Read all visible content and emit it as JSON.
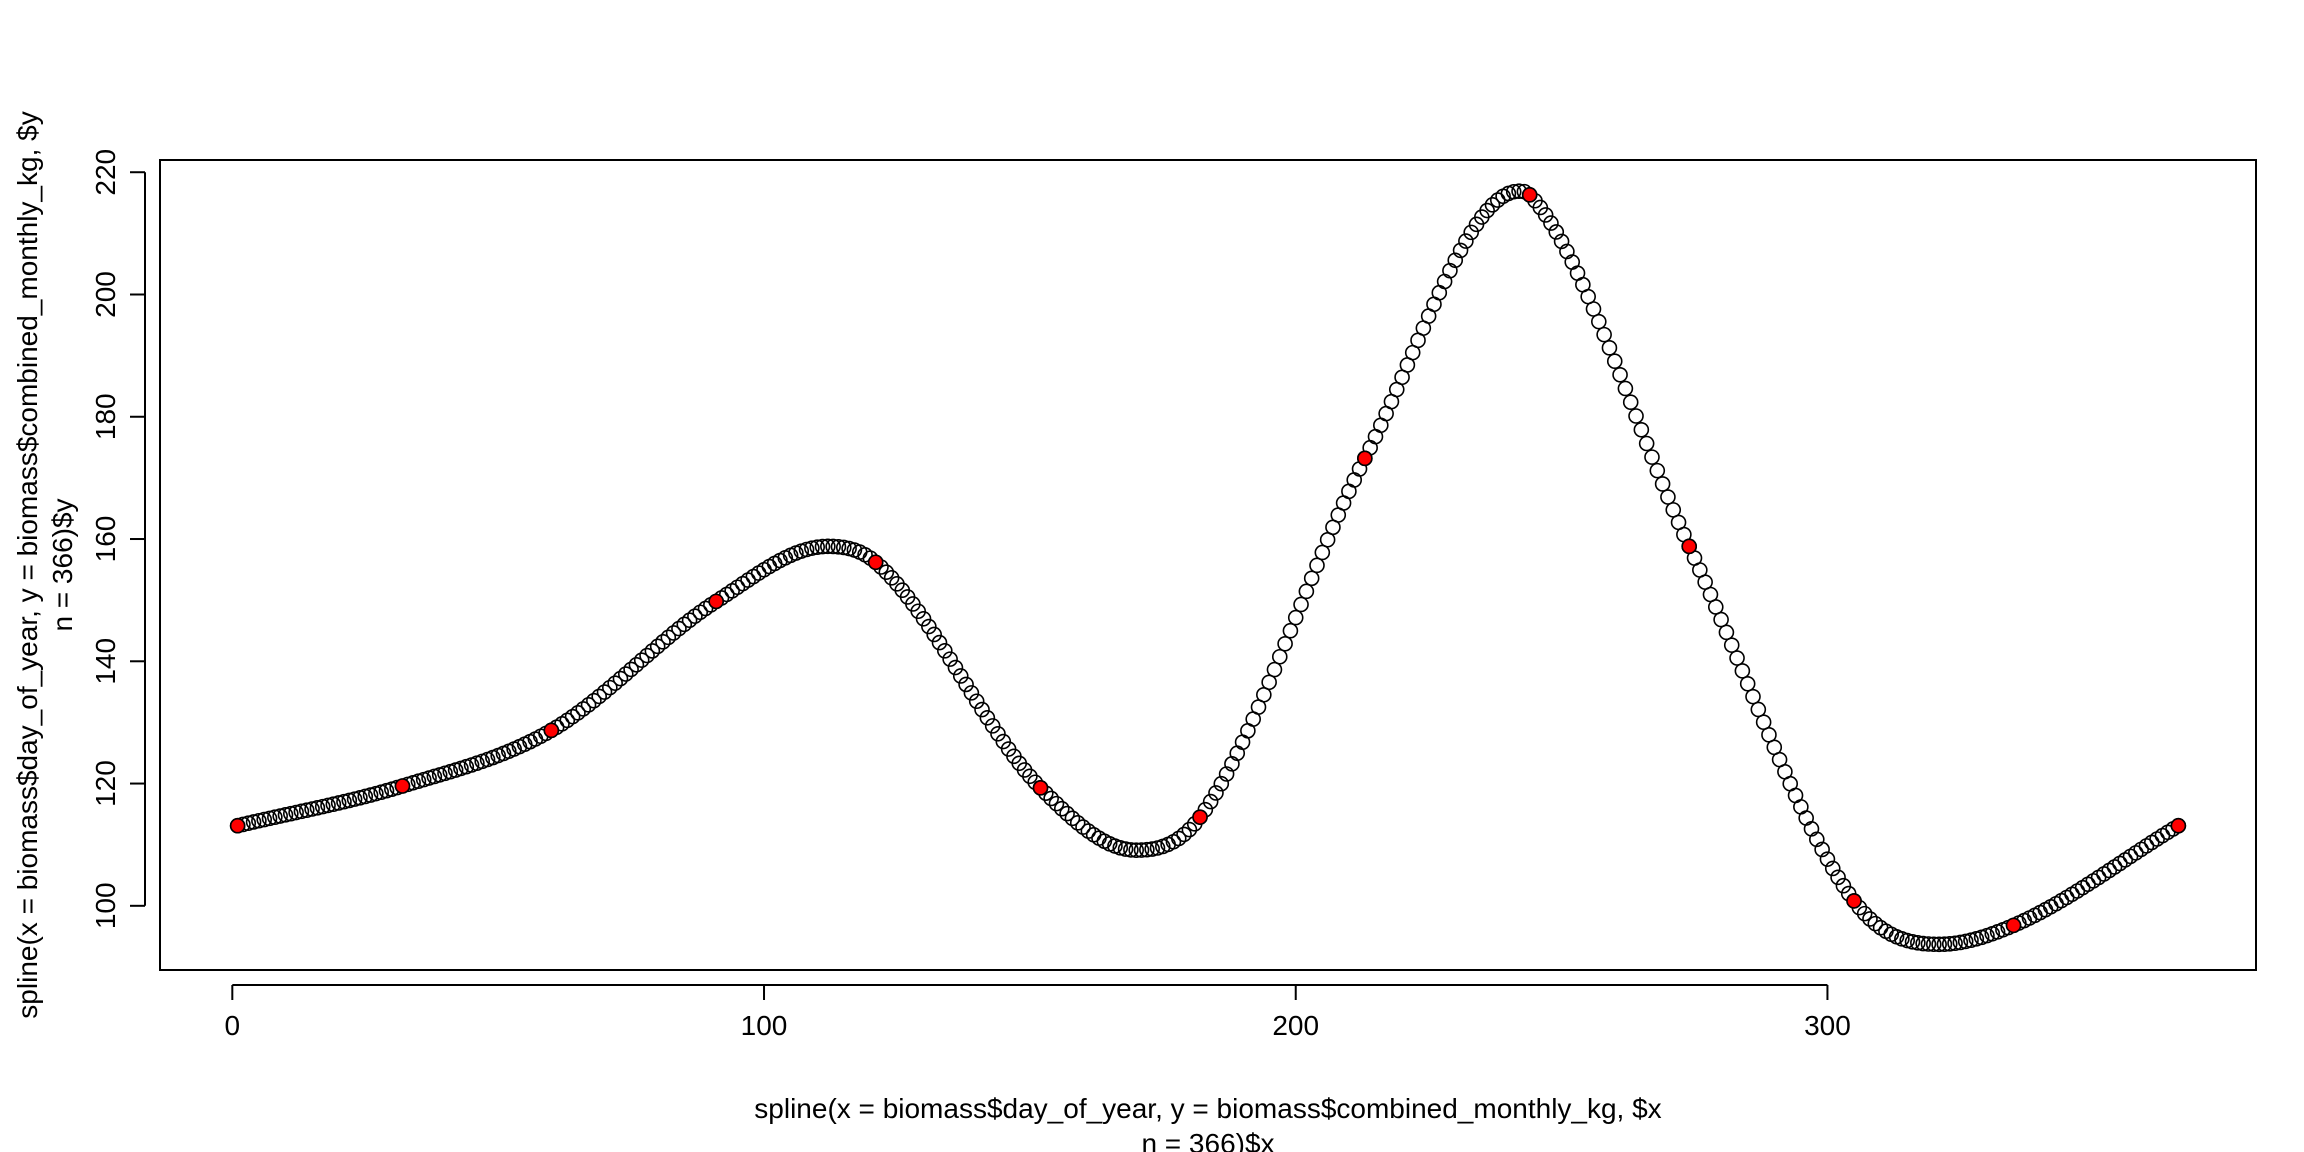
{
  "chart_data": {
    "type": "scatter",
    "xlabel": [
      "spline(x = biomass$day_of_year, y = biomass$combined_monthly_kg, $x",
      "n = 366)$x"
    ],
    "ylabel": [
      "spline(x = biomass$day_of_year, y = biomass$combined_monthly_kg, $y",
      "n = 366)$y"
    ],
    "xlim": [
      -13.6,
      380.6
    ],
    "ylim": [
      89.5,
      222
    ],
    "x_ticks": [
      0,
      100,
      200,
      300
    ],
    "y_ticks": [
      100,
      120,
      140,
      160,
      180,
      200,
      220
    ],
    "grid": false,
    "legend": "none",
    "n": 366,
    "spline_knots": [
      {
        "x": 1,
        "y": 113.1
      },
      {
        "x": 32,
        "y": 119.6
      },
      {
        "x": 60,
        "y": 128.7
      },
      {
        "x": 91,
        "y": 149.8
      },
      {
        "x": 112,
        "y": 158.8
      },
      {
        "x": 121,
        "y": 156.2
      },
      {
        "x": 152,
        "y": 119.3
      },
      {
        "x": 170,
        "y": 109.1
      },
      {
        "x": 182,
        "y": 114.5
      },
      {
        "x": 213,
        "y": 173.2
      },
      {
        "x": 242,
        "y": 216.9
      },
      {
        "x": 244,
        "y": 216.3
      },
      {
        "x": 274,
        "y": 158.8
      },
      {
        "x": 305,
        "y": 100.8
      },
      {
        "x": 321,
        "y": 93.7
      },
      {
        "x": 335,
        "y": 96.8
      },
      {
        "x": 366,
        "y": 113.1
      }
    ],
    "series": [
      {
        "style": "open-circle",
        "color": "#000000",
        "x": [
          1,
          366
        ]
      },
      {
        "style": "filled-circle",
        "color": "#ff0000",
        "points": [
          {
            "x": 1,
            "y": 113.1
          },
          {
            "x": 32,
            "y": 119.6
          },
          {
            "x": 60,
            "y": 128.7
          },
          {
            "x": 91,
            "y": 149.8
          },
          {
            "x": 121,
            "y": 156.2
          },
          {
            "x": 152,
            "y": 119.3
          },
          {
            "x": 182,
            "y": 114.5
          },
          {
            "x": 213,
            "y": 173.2
          },
          {
            "x": 244,
            "y": 216.3
          },
          {
            "x": 274,
            "y": 158.8
          },
          {
            "x": 305,
            "y": 100.8
          },
          {
            "x": 335,
            "y": 96.8
          },
          {
            "x": 366,
            "y": 113.1
          }
        ]
      }
    ]
  }
}
